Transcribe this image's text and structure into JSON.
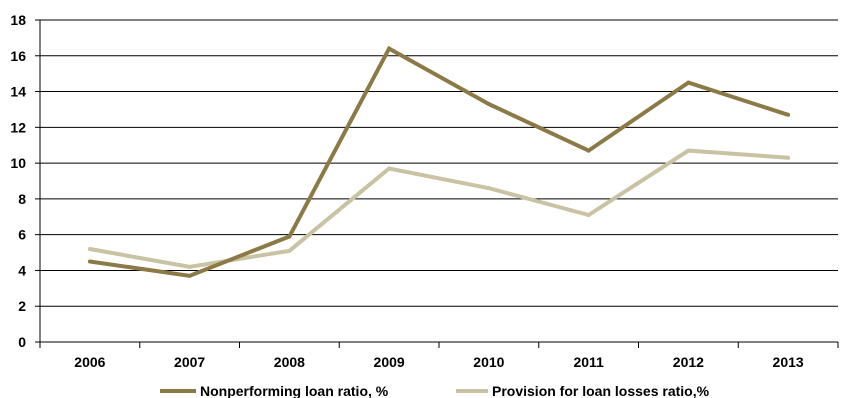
{
  "chart_data": {
    "type": "line",
    "title": "",
    "xlabel": "",
    "ylabel": "",
    "categories": [
      "2006",
      "2007",
      "2008",
      "2009",
      "2010",
      "2011",
      "2012",
      "2013"
    ],
    "ylim": [
      0,
      18
    ],
    "yticks": [
      "0",
      "2",
      "4",
      "6",
      "8",
      "10",
      "12",
      "14",
      "16",
      "18"
    ],
    "grid": true,
    "legend_position": "bottom",
    "series": [
      {
        "name": "Nonperforming loan ratio, %",
        "color": "#8b7a45",
        "values": [
          4.5,
          3.7,
          5.9,
          16.4,
          13.3,
          10.7,
          14.5,
          12.7
        ]
      },
      {
        "name": "Provision for loan losses ratio,%",
        "color": "#c9c2a3",
        "values": [
          5.2,
          4.2,
          5.1,
          9.7,
          8.6,
          7.1,
          10.7,
          10.3
        ]
      }
    ]
  }
}
